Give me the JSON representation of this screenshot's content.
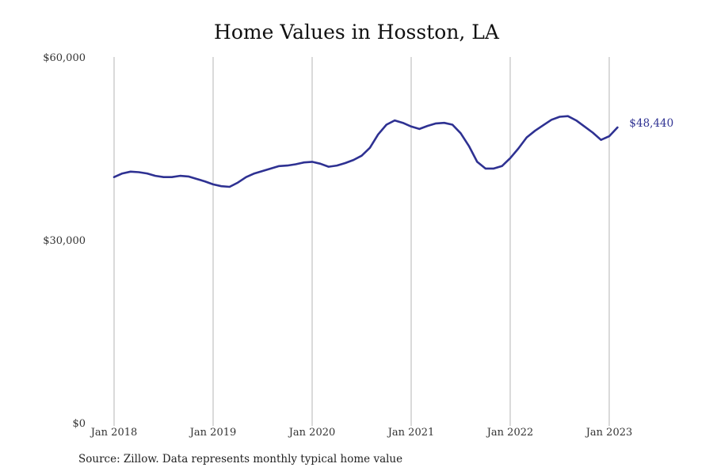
{
  "colors": {
    "line": "#2e3192",
    "grid": "#b4b4b4",
    "background": "#ffffff"
  },
  "chart_data": {
    "type": "line",
    "title": "Home Values in Hosston, LA",
    "xlabel": "",
    "ylabel": "",
    "source": "Source: Zillow. Data represents monthly typical home value",
    "ylim": [
      0,
      60000
    ],
    "yticks": [
      {
        "value": 0,
        "label": "$0"
      },
      {
        "value": 30000,
        "label": "$30,000"
      },
      {
        "value": 60000,
        "label": "$60,000"
      }
    ],
    "xticks": [
      {
        "value": "2018-01",
        "label": "Jan 2018"
      },
      {
        "value": "2019-01",
        "label": "Jan 2019"
      },
      {
        "value": "2020-01",
        "label": "Jan 2020"
      },
      {
        "value": "2021-01",
        "label": "Jan 2021"
      },
      {
        "value": "2022-01",
        "label": "Jan 2022"
      },
      {
        "value": "2023-01",
        "label": "Jan 2023"
      }
    ],
    "grid": "vertical lines at x ticks",
    "end_label": "$48,440",
    "series": [
      {
        "x": [
          "2018-01",
          "2018-02",
          "2018-03",
          "2018-04",
          "2018-05",
          "2018-06",
          "2018-07",
          "2018-08",
          "2018-09",
          "2018-10",
          "2018-11",
          "2018-12",
          "2019-01",
          "2019-02",
          "2019-03",
          "2019-04",
          "2019-05",
          "2019-06",
          "2019-07",
          "2019-08",
          "2019-09",
          "2019-10",
          "2019-11",
          "2019-12",
          "2020-01",
          "2020-02",
          "2020-03",
          "2020-04",
          "2020-05",
          "2020-06",
          "2020-07",
          "2020-08",
          "2020-09",
          "2020-10",
          "2020-11",
          "2020-12",
          "2021-01",
          "2021-02",
          "2021-03",
          "2021-04",
          "2021-05",
          "2021-06",
          "2021-07",
          "2021-08",
          "2021-09",
          "2021-10",
          "2021-11",
          "2021-12",
          "2022-01",
          "2022-02",
          "2022-03",
          "2022-04",
          "2022-05",
          "2022-06",
          "2022-07",
          "2022-08",
          "2022-09",
          "2022-10",
          "2022-11",
          "2022-12",
          "2023-01",
          "2023-02"
        ],
        "values": [
          40300,
          40900,
          41200,
          41100,
          40900,
          40500,
          40300,
          40300,
          40500,
          40400,
          40000,
          39600,
          39100,
          38800,
          38700,
          39400,
          40300,
          40900,
          41300,
          41700,
          42100,
          42200,
          42400,
          42700,
          42800,
          42500,
          42000,
          42200,
          42600,
          43100,
          43800,
          45100,
          47300,
          48900,
          49600,
          49200,
          48600,
          48200,
          48700,
          49100,
          49200,
          48900,
          47500,
          45400,
          42800,
          41700,
          41700,
          42100,
          43400,
          45000,
          46800,
          47900,
          48800,
          49700,
          50200,
          50300,
          49600,
          48600,
          47600,
          46400,
          47000,
          48440
        ]
      }
    ]
  }
}
